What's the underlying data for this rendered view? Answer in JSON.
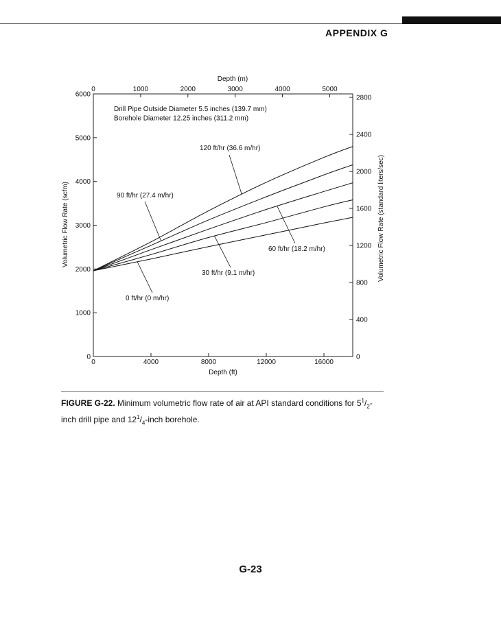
{
  "header": {
    "section": "APPENDIX G"
  },
  "figure": {
    "label": "FIGURE G-22.",
    "caption_pre": "Minimum volumetric flow rate of air at API standard conditions for ",
    "drill_int": "5",
    "drill_num": "1",
    "drill_den": "2",
    "caption_mid": "-inch drill pipe and ",
    "bore_int": "12",
    "bore_num": "1",
    "bore_den": "4",
    "caption_post": "-inch borehole."
  },
  "footer": {
    "page_number": "G-23"
  },
  "chart_data": {
    "type": "line",
    "note_lines": [
      "Drill Pipe Outside Diameter 5.5 inches (139.7 mm)",
      "Borehole Diameter 12.25 inches (311.2 mm)"
    ],
    "xlabel": "Depth (ft)",
    "xlim": [
      0,
      18000
    ],
    "x_ticks": [
      0,
      4000,
      8000,
      12000,
      16000
    ],
    "ylabel": "Volumetric Flow Rate (scfm)",
    "ylim": [
      0,
      6000
    ],
    "y_ticks": [
      0,
      1000,
      2000,
      3000,
      4000,
      5000,
      6000
    ],
    "x2label": "Depth (m)",
    "x2_ticks": [
      0,
      1000,
      2000,
      3000,
      4000,
      5000
    ],
    "y2label": "Volumetric Flow Rate (standard liters/sec)",
    "y2_ticks": [
      0,
      400,
      800,
      1200,
      1600,
      2000,
      2400,
      2800
    ],
    "grid": false,
    "series": [
      {
        "name": "0 ft/hr (0 m/hr)",
        "x": [
          0,
          4000,
          8000,
          12000,
          16000,
          18000
        ],
        "values": [
          1960,
          2230,
          2510,
          2780,
          3050,
          3180
        ]
      },
      {
        "name": "30 ft/hr (9.1 m/hr)",
        "x": [
          0,
          4000,
          8000,
          12000,
          16000,
          18000
        ],
        "values": [
          1960,
          2330,
          2720,
          3060,
          3420,
          3580
        ]
      },
      {
        "name": "60 ft/hr (18.2 m/hr)",
        "x": [
          0,
          4000,
          8000,
          12000,
          16000,
          18000
        ],
        "values": [
          1960,
          2440,
          2910,
          3360,
          3770,
          3970
        ]
      },
      {
        "name": "90 ft/hr (27.4 m/hr)",
        "x": [
          0,
          4000,
          8000,
          12000,
          16000,
          18000
        ],
        "values": [
          1960,
          2540,
          3120,
          3650,
          4150,
          4380
        ]
      },
      {
        "name": "120 ft/hr (36.6 m/hr)",
        "x": [
          0,
          4000,
          8000,
          12000,
          16000,
          18000
        ],
        "values": [
          1960,
          2620,
          3330,
          3980,
          4550,
          4800
        ]
      }
    ]
  }
}
